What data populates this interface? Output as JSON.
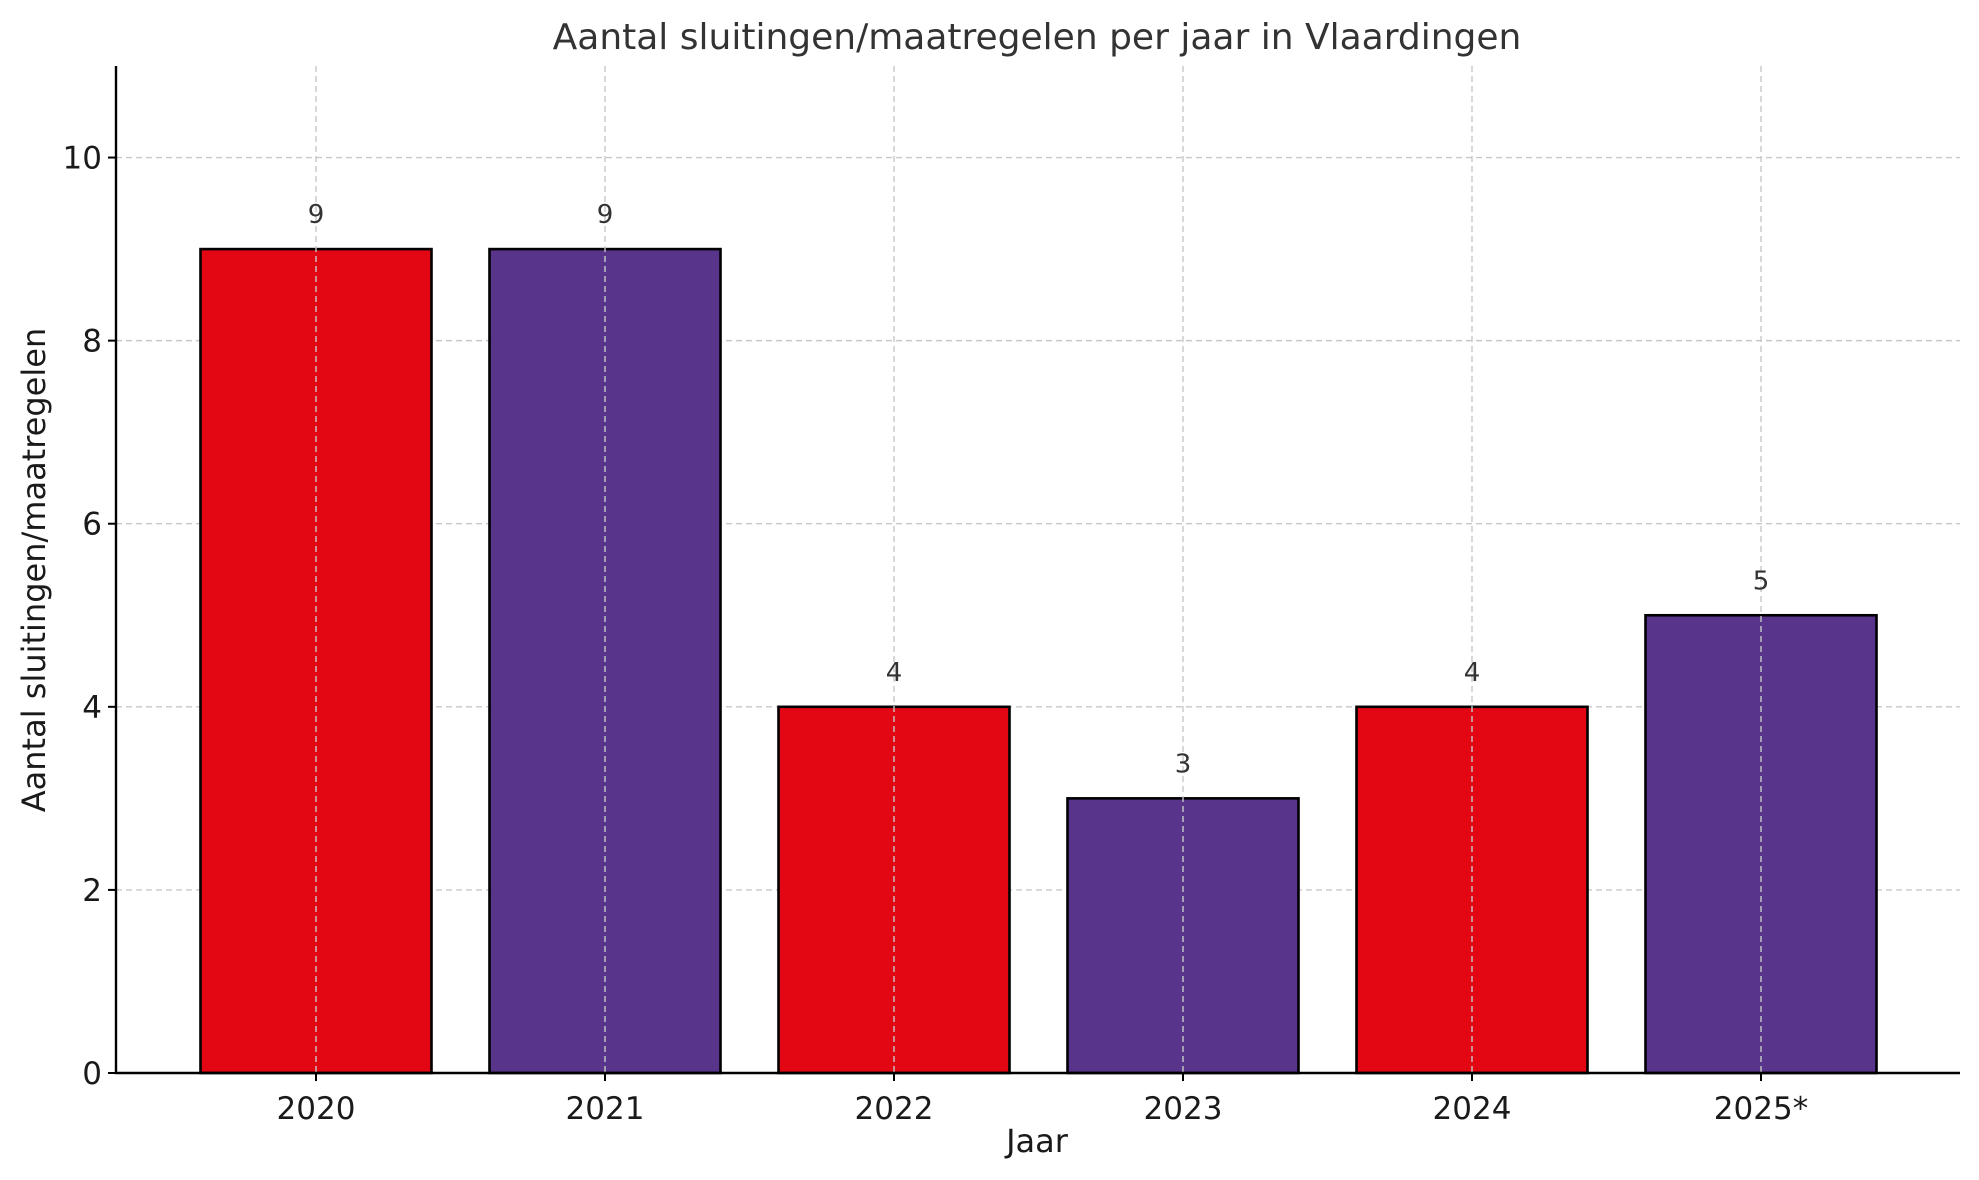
{
  "chart_data": {
    "type": "bar",
    "title": "Aantal sluitingen/maatregelen per jaar in Vlaardingen",
    "xlabel": "Jaar",
    "ylabel": "Aantal sluitingen/maatregelen",
    "categories": [
      "2020",
      "2021",
      "2022",
      "2023",
      "2024",
      "2025*"
    ],
    "values": [
      9,
      9,
      4,
      3,
      4,
      5
    ],
    "value_labels": [
      "9",
      "9",
      "4",
      "3",
      "4",
      "5"
    ],
    "bar_colors": [
      "#e30613",
      "#58358a",
      "#e30613",
      "#58358a",
      "#e30613",
      "#58358a"
    ],
    "ylim": [
      0,
      11
    ],
    "yticks": [
      0,
      2,
      4,
      6,
      8,
      10
    ],
    "ytick_labels": [
      "0",
      "2",
      "4",
      "6",
      "8",
      "10"
    ],
    "grid": true
  }
}
